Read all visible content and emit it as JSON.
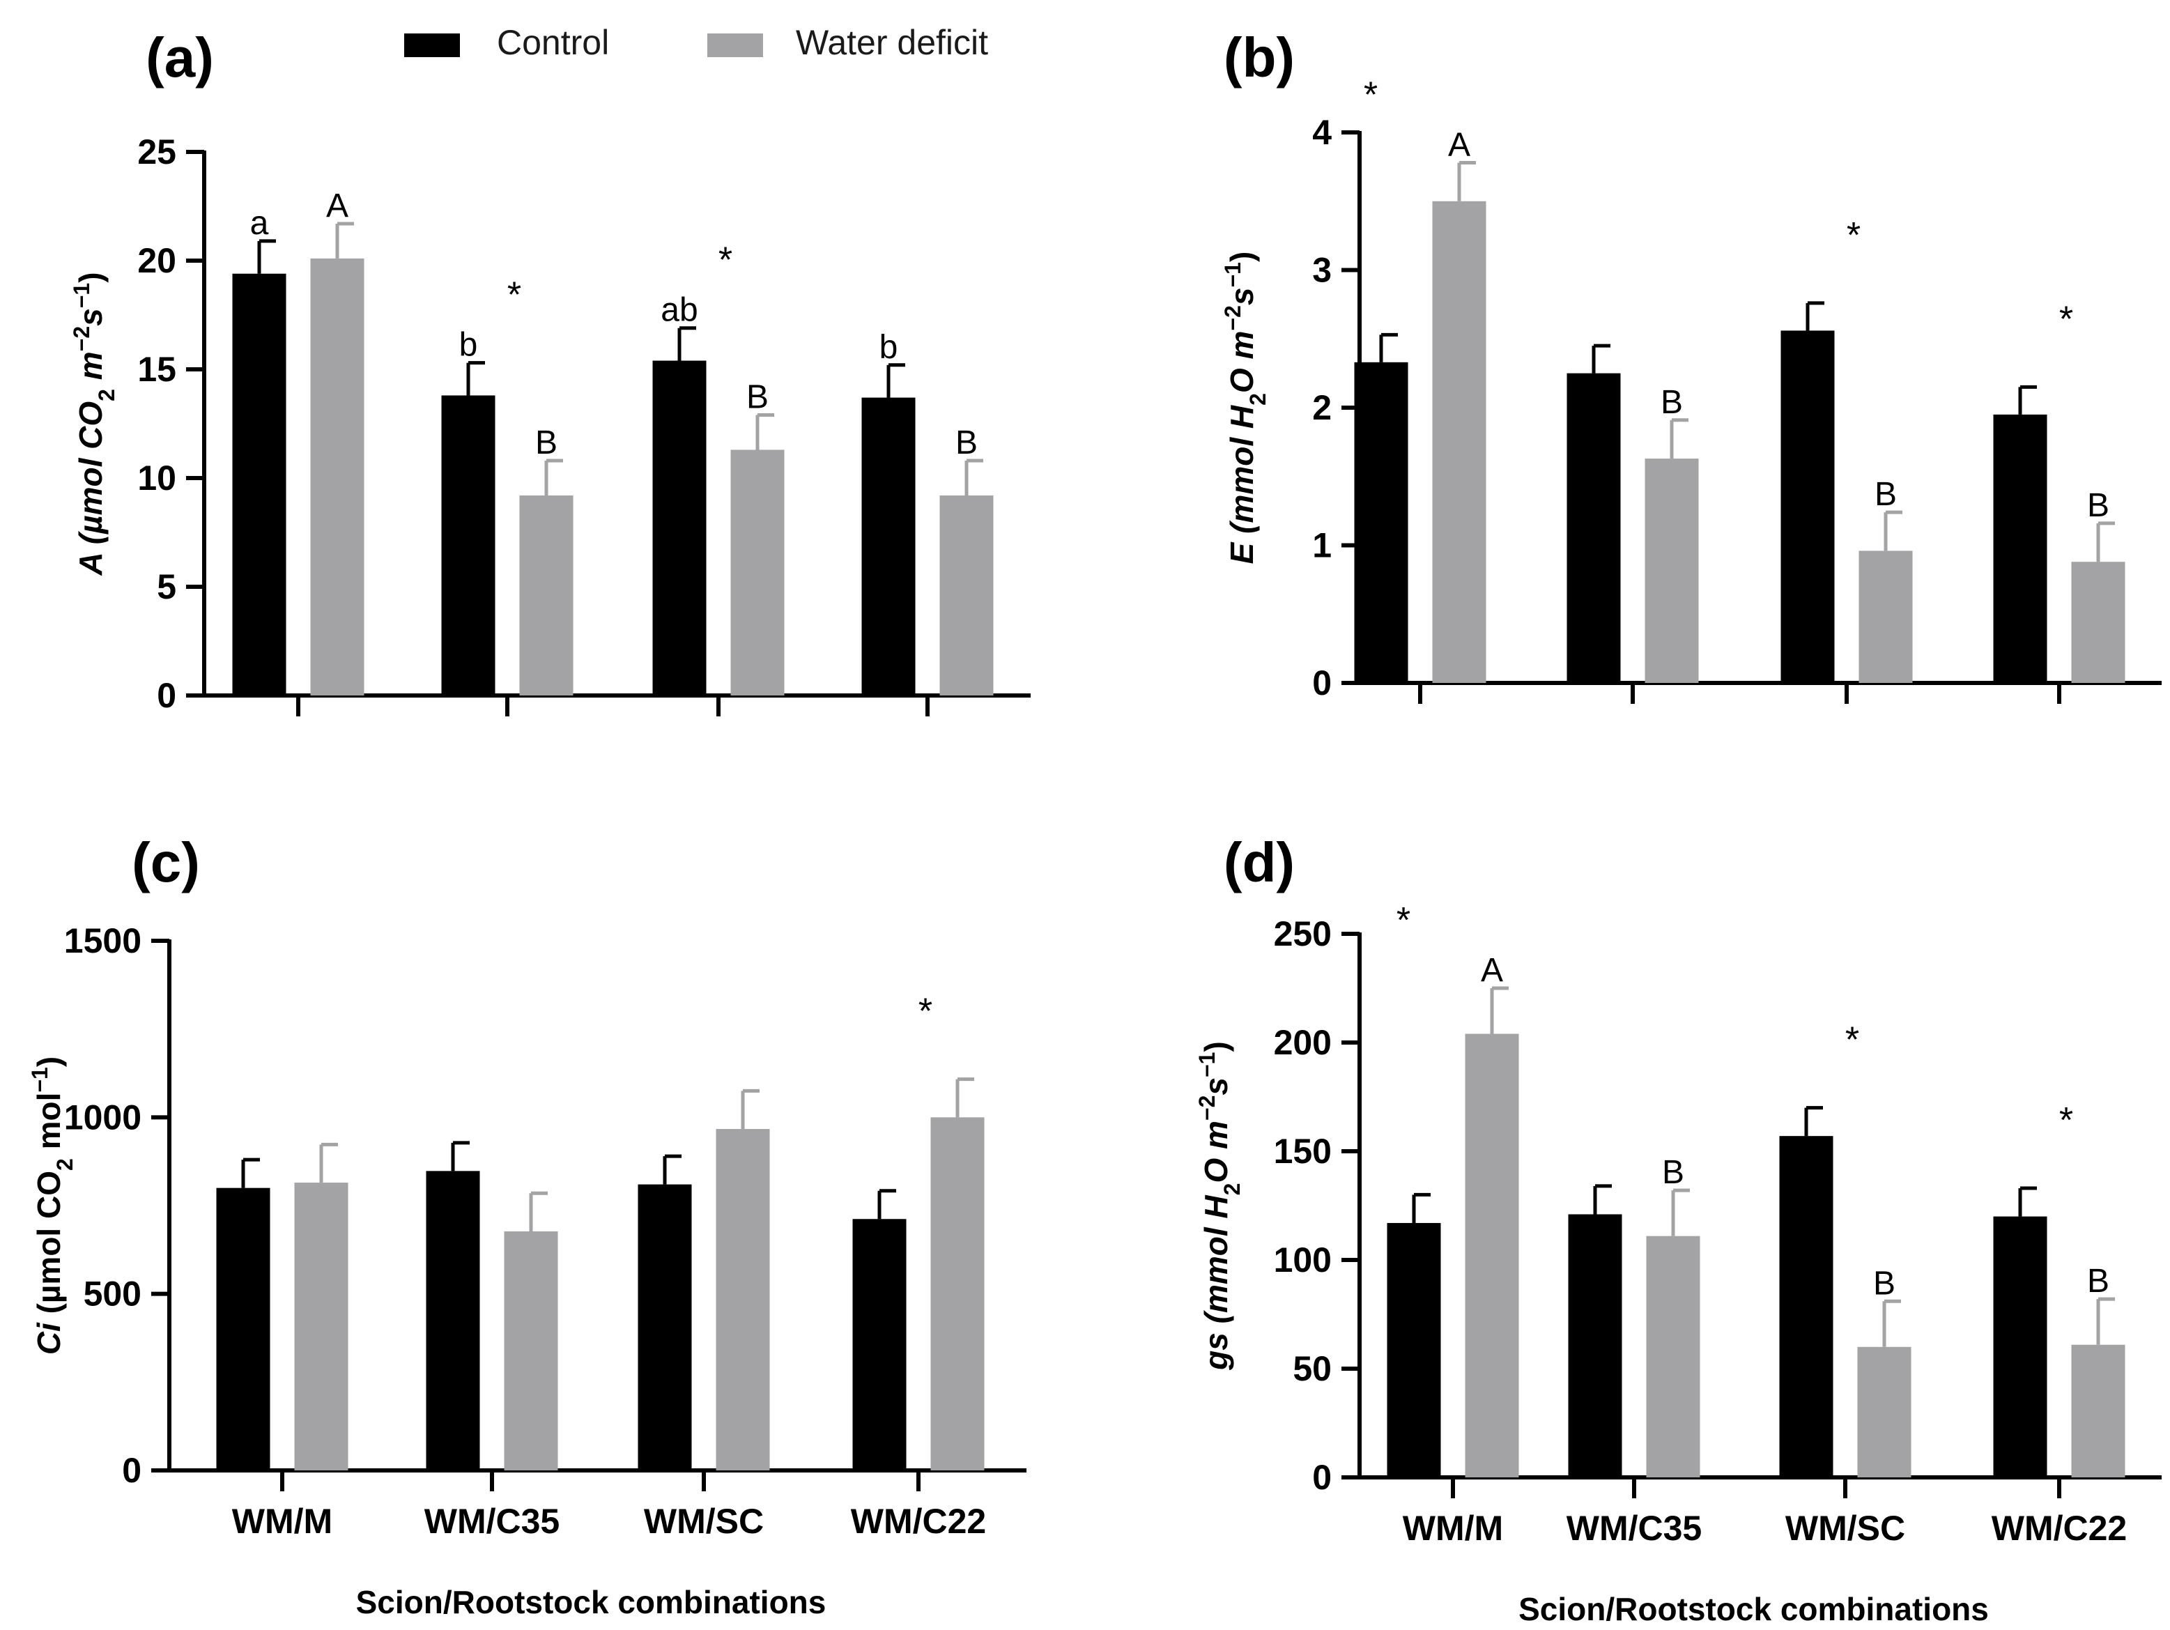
{
  "legend": {
    "items": [
      {
        "label": "Control",
        "color": "#000000"
      },
      {
        "label": "Water deficit",
        "color": "#a3a3a6"
      }
    ]
  },
  "colors": {
    "control": "#000000",
    "deficit": "#a3a3a6",
    "axis": "#000000",
    "text": "#1a1a1a"
  },
  "chart_data": [
    {
      "id": "a",
      "panel_label": "(a)",
      "type": "bar",
      "categories": [
        "WM/M",
        "WM/C35",
        "WM/SC",
        "WM/C22"
      ],
      "show_category_labels": false,
      "ylabel_parts": [
        "A",
        "(µmol CO",
        "2",
        " m",
        "−2",
        "s",
        "−1",
        ")"
      ],
      "xlabel": "",
      "ylim": [
        0,
        25
      ],
      "yticks": [
        0,
        5,
        10,
        15,
        20,
        25
      ],
      "series": [
        {
          "name": "Control",
          "values": [
            19.4,
            13.8,
            15.4,
            13.7
          ],
          "errors": [
            1.5,
            1.5,
            1.5,
            1.5
          ],
          "letters": [
            "a",
            "b",
            "ab",
            "b"
          ]
        },
        {
          "name": "Water deficit",
          "values": [
            20.1,
            9.2,
            11.3,
            9.2
          ],
          "errors": [
            1.6,
            1.6,
            1.6,
            1.6
          ],
          "letters": [
            "A",
            "B",
            "B",
            "B"
          ]
        }
      ],
      "significance": [
        false,
        true,
        true,
        false
      ]
    },
    {
      "id": "b",
      "panel_label": "(b)",
      "type": "bar",
      "categories": [
        "WM/M",
        "WM/C35",
        "WM/SC",
        "WM/C22"
      ],
      "show_category_labels": false,
      "ylabel_parts": [
        "E",
        "(mmol H",
        "2",
        "O m",
        "−2",
        "s",
        "−1",
        ")"
      ],
      "xlabel": "",
      "ylim": [
        0,
        4
      ],
      "yticks": [
        0,
        1,
        2,
        3,
        4
      ],
      "series": [
        {
          "name": "Control",
          "values": [
            2.33,
            2.25,
            2.56,
            1.95
          ],
          "errors": [
            0.2,
            0.2,
            0.2,
            0.2
          ],
          "letters": [
            "",
            "",
            "",
            ""
          ]
        },
        {
          "name": "Water deficit",
          "values": [
            3.5,
            1.63,
            0.96,
            0.88
          ],
          "errors": [
            0.28,
            0.28,
            0.28,
            0.28
          ],
          "letters": [
            "A",
            "B",
            "B",
            "B"
          ]
        }
      ],
      "significance": [
        true,
        false,
        true,
        true
      ]
    },
    {
      "id": "c",
      "panel_label": "(c)",
      "type": "bar",
      "categories": [
        "WM/M",
        "WM/C35",
        "WM/SC",
        "WM/C22"
      ],
      "show_category_labels": true,
      "ylabel_parts": [
        "Ci",
        "(µmol CO",
        "2",
        " mol",
        "−1",
        "",
        "",
        ")"
      ],
      "xlabel": "Scion/Rootstock combinations",
      "ylim": [
        0,
        1500
      ],
      "yticks": [
        0,
        500,
        1000,
        1500
      ],
      "series": [
        {
          "name": "Control",
          "values": [
            800,
            848,
            810,
            712
          ],
          "errors": [
            80,
            80,
            80,
            80
          ],
          "letters": [
            "",
            "",
            "",
            ""
          ]
        },
        {
          "name": "Water deficit",
          "values": [
            815,
            677,
            967,
            1000
          ],
          "errors": [
            108,
            108,
            108,
            108
          ],
          "letters": [
            "",
            "",
            "",
            ""
          ]
        }
      ],
      "significance": [
        false,
        false,
        false,
        true
      ]
    },
    {
      "id": "d",
      "panel_label": "(d)",
      "type": "bar",
      "categories": [
        "WM/M",
        "WM/C35",
        "WM/SC",
        "WM/C22"
      ],
      "show_category_labels": true,
      "ylabel_parts": [
        "gs",
        "(mmol H",
        "2",
        "O m",
        "−2",
        "s",
        "−1",
        ")"
      ],
      "xlabel": "Scion/Rootstock combinations",
      "ylim": [
        0,
        250
      ],
      "yticks": [
        0,
        50,
        100,
        150,
        200,
        250
      ],
      "series": [
        {
          "name": "Control",
          "values": [
            117,
            121,
            157,
            120
          ],
          "errors": [
            13,
            13,
            13,
            13
          ],
          "letters": [
            "",
            "",
            "",
            ""
          ]
        },
        {
          "name": "Water deficit",
          "values": [
            204,
            111,
            60,
            61
          ],
          "errors": [
            21,
            21,
            21,
            21
          ],
          "letters": [
            "A",
            "B",
            "B",
            "B"
          ]
        }
      ],
      "significance": [
        true,
        false,
        true,
        true
      ]
    }
  ]
}
